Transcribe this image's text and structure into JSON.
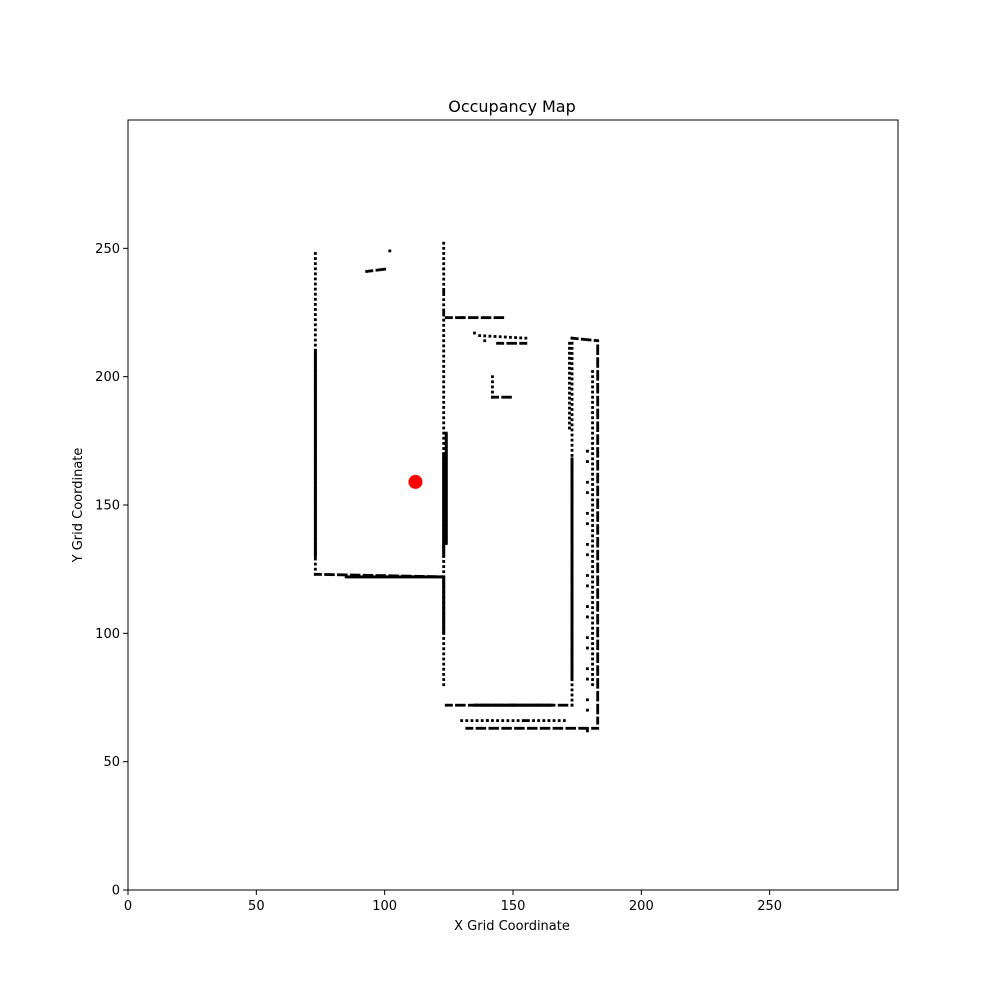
{
  "chart_data": {
    "type": "scatter",
    "title": "Occupancy Map",
    "xlabel": "X Grid Coordinate",
    "ylabel": "Y Grid Coordinate",
    "xlim": [
      0,
      300
    ],
    "ylim": [
      0,
      300
    ],
    "xticks": [
      0,
      50,
      100,
      150,
      200,
      250
    ],
    "yticks": [
      0,
      50,
      100,
      150,
      200,
      250
    ],
    "grid": false,
    "colors": {
      "occupied": "#000000",
      "robot": "#ff0000",
      "background": "#ffffff"
    },
    "occupied_segments": [
      {
        "from": [
          73,
          123
        ],
        "to": [
          73,
          248
        ],
        "density": "dotted"
      },
      {
        "from": [
          73,
          130
        ],
        "to": [
          73,
          210
        ],
        "density": "solid"
      },
      {
        "from": [
          73,
          123
        ],
        "to": [
          123,
          122
        ],
        "density": "dashed"
      },
      {
        "from": [
          85,
          122
        ],
        "to": [
          123,
          122
        ],
        "density": "solid"
      },
      {
        "from": [
          123,
          80
        ],
        "to": [
          123,
          252
        ],
        "density": "dotted"
      },
      {
        "from": [
          123,
          130
        ],
        "to": [
          123,
          170
        ],
        "density": "solid"
      },
      {
        "from": [
          124,
          135
        ],
        "to": [
          124,
          178
        ],
        "density": "solid"
      },
      {
        "from": [
          123,
          100
        ],
        "to": [
          123,
          122
        ],
        "density": "solid"
      },
      {
        "from": [
          93,
          241
        ],
        "to": [
          101,
          242
        ],
        "density": "dashed"
      },
      {
        "from": [
          124,
          223
        ],
        "to": [
          147,
          223
        ],
        "density": "dashed"
      },
      {
        "from": [
          137,
          216
        ],
        "to": [
          155,
          215
        ],
        "density": "dotted"
      },
      {
        "from": [
          144,
          213
        ],
        "to": [
          155,
          213
        ],
        "density": "dashed"
      },
      {
        "from": [
          142,
          192
        ],
        "to": [
          150,
          192
        ],
        "density": "dashed"
      },
      {
        "from": [
          142,
          192
        ],
        "to": [
          142,
          200
        ],
        "density": "dotted"
      },
      {
        "from": [
          124,
          72
        ],
        "to": [
          173,
          72
        ],
        "density": "dashed"
      },
      {
        "from": [
          135,
          72
        ],
        "to": [
          165,
          72
        ],
        "density": "solid"
      },
      {
        "from": [
          130,
          66
        ],
        "to": [
          170,
          66
        ],
        "density": "dotted"
      },
      {
        "from": [
          132,
          63
        ],
        "to": [
          183,
          63
        ],
        "density": "dashed"
      },
      {
        "from": [
          173,
          72
        ],
        "to": [
          173,
          215
        ],
        "density": "dotted"
      },
      {
        "from": [
          173,
          82
        ],
        "to": [
          173,
          168
        ],
        "density": "solid"
      },
      {
        "from": [
          172,
          180
        ],
        "to": [
          172,
          213
        ],
        "density": "dotted"
      },
      {
        "from": [
          173,
          215
        ],
        "to": [
          183,
          214
        ],
        "density": "dashed"
      },
      {
        "from": [
          183,
          65
        ],
        "to": [
          183,
          212
        ],
        "density": "dashed"
      },
      {
        "from": [
          181,
          80
        ],
        "to": [
          181,
          202
        ],
        "density": "dotted"
      },
      {
        "from": [
          179,
          62
        ],
        "to": [
          179,
          175
        ],
        "density": "sparse"
      }
    ],
    "occupied_points": [
      [
        102,
        249
      ],
      [
        123,
        242
      ],
      [
        123,
        233
      ],
      [
        123,
        225
      ],
      [
        130,
        223
      ],
      [
        135,
        217
      ],
      [
        139,
        214
      ],
      [
        150,
        72
      ],
      [
        140,
        66
      ],
      [
        155,
        66
      ]
    ],
    "robot": {
      "label": "robot",
      "x": 112,
      "y": 159
    }
  }
}
